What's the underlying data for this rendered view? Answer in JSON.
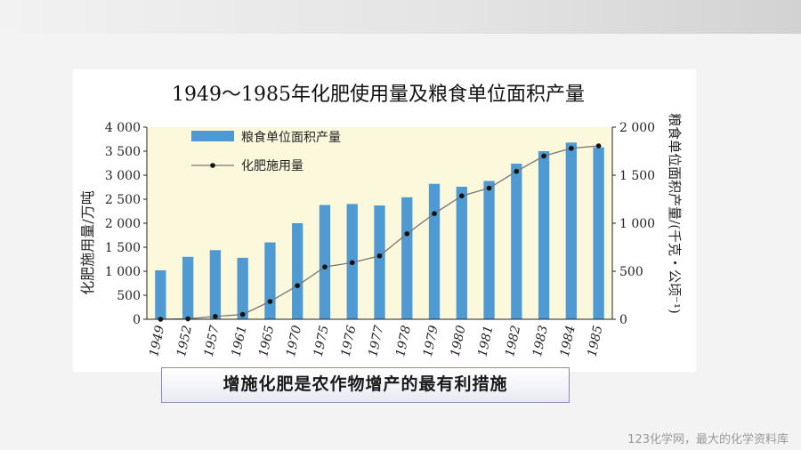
{
  "slide": {
    "callout_text": "增施化肥是农作物增产的最有利措施",
    "footer_text": "123化学网，最大的化学资料库"
  },
  "chart_data": {
    "type": "bar+line",
    "title": "1949～1985年化肥使用量及粮食单位面积产量",
    "categories": [
      "1949",
      "1952",
      "1957",
      "1961",
      "1965",
      "1970",
      "1975",
      "1976",
      "1977",
      "1978",
      "1979",
      "1980",
      "1981",
      "1982",
      "1983",
      "1984",
      "1985"
    ],
    "left_axis": {
      "label": "化肥施用量/万吨",
      "range": [
        0,
        4000
      ],
      "ticks": [
        0,
        500,
        1000,
        1500,
        2000,
        2500,
        3000,
        3500,
        4000
      ],
      "tick_labels": [
        "0",
        "500",
        "1 000",
        "1 500",
        "2 000",
        "2 500",
        "3 000",
        "3 500",
        "4 000"
      ]
    },
    "right_axis": {
      "label": "粮食单位面积产量/(千克・公顷⁻¹)",
      "range": [
        0,
        2000
      ],
      "ticks": [
        0,
        500,
        1000,
        1500,
        2000
      ],
      "tick_labels": [
        "0",
        "500",
        "1 000",
        "1 500",
        "2 000"
      ]
    },
    "series": [
      {
        "name": "粮食单位面积产量",
        "type": "bar",
        "axis": "right",
        "color": "#4f9ad3",
        "values": [
          510,
          650,
          720,
          640,
          800,
          1000,
          1190,
          1200,
          1185,
          1270,
          1410,
          1380,
          1440,
          1620,
          1750,
          1840,
          1790
        ]
      },
      {
        "name": "化肥施用量",
        "type": "line",
        "axis": "left",
        "color": "#777777",
        "marker_color": "#111111",
        "values": [
          0,
          8,
          60,
          100,
          370,
          700,
          1090,
          1180,
          1320,
          1780,
          2200,
          2570,
          2730,
          3080,
          3400,
          3560,
          3610
        ]
      }
    ],
    "legend": {
      "position": "top-left",
      "entries": [
        "粮食单位面积产量",
        "化肥施用量"
      ]
    }
  }
}
